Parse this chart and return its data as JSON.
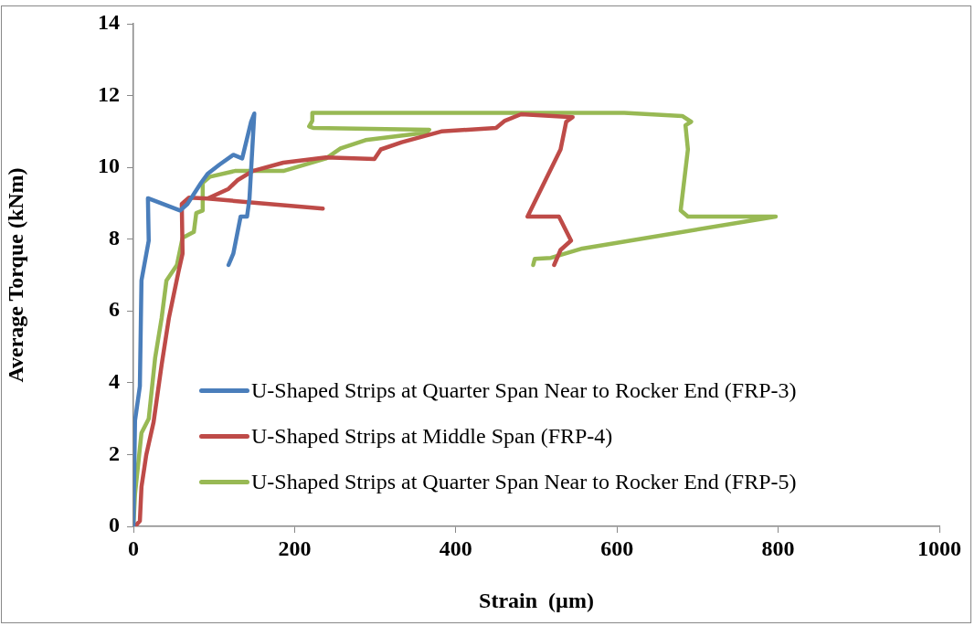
{
  "chart_data": {
    "type": "line",
    "xlabel": "Strain  (µm)",
    "ylabel": "Average Torque (kNm)",
    "xlim": [
      0,
      1000
    ],
    "xticks": [
      0,
      200,
      400,
      600,
      800,
      1000
    ],
    "ylim": [
      0,
      14
    ],
    "yticks": [
      0,
      2,
      4,
      6,
      8,
      10,
      12,
      14
    ],
    "grid": false,
    "legend": "bottom right",
    "marker": "none",
    "line_style": "solid",
    "series": [
      {
        "name": "U-Shaped Strips at Quarter Span Near to Rocker End (FRP-3)",
        "color": "#4a7ebb",
        "x": [
          0,
          2,
          8,
          10,
          19,
          18,
          58,
          67,
          84,
          92,
          107,
          124,
          135,
          146,
          150,
          144,
          141,
          133,
          124,
          118
        ],
        "values": [
          0,
          2.95,
          3.9,
          6.85,
          7.96,
          9.14,
          8.8,
          8.98,
          9.57,
          9.82,
          10.08,
          10.35,
          10.25,
          11.27,
          11.5,
          9.13,
          8.63,
          8.63,
          7.6,
          7.28
        ]
      },
      {
        "name": "U-Shaped Strips at Middle Span (FRP-4)",
        "color": "#be4b48",
        "x": [
          2,
          8,
          10,
          16,
          25,
          35,
          44,
          56,
          61,
          60,
          69,
          92,
          235,
          92,
          118,
          129,
          148,
          186,
          239,
          299,
          307,
          333,
          382,
          450,
          461,
          481,
          545,
          537,
          530,
          489,
          528,
          543,
          530,
          522
        ],
        "values": [
          0,
          0.15,
          1.1,
          2.0,
          2.9,
          4.5,
          5.8,
          7.1,
          7.6,
          8.98,
          9.16,
          9.13,
          8.85,
          9.13,
          9.4,
          9.64,
          9.9,
          10.13,
          10.28,
          10.23,
          10.5,
          10.7,
          11.0,
          11.1,
          11.3,
          11.48,
          11.4,
          11.27,
          10.5,
          8.63,
          8.63,
          7.96,
          7.7,
          7.28
        ]
      },
      {
        "name": "U-Shaped Strips at Quarter Span Near to Rocker End (FRP-5)",
        "color": "#98b954",
        "x": [
          0,
          2,
          10,
          19,
          27,
          35,
          41,
          54,
          61,
          75,
          78,
          86,
          86,
          95,
          126,
          186,
          239,
          257,
          288,
          364,
          367,
          223,
          218,
          222,
          222,
          609,
          681,
          692,
          685,
          688,
          679,
          688,
          797,
          557,
          518,
          498,
          496
        ],
        "values": [
          0,
          0.9,
          2.6,
          3.0,
          4.7,
          5.8,
          6.85,
          7.28,
          8.04,
          8.2,
          8.73,
          8.8,
          9.57,
          9.74,
          9.9,
          9.9,
          10.25,
          10.53,
          10.76,
          10.97,
          11.05,
          11.1,
          11.14,
          11.3,
          11.52,
          11.52,
          11.43,
          11.27,
          11.17,
          10.5,
          8.8,
          8.63,
          8.63,
          7.74,
          7.48,
          7.45,
          7.28
        ]
      }
    ]
  }
}
